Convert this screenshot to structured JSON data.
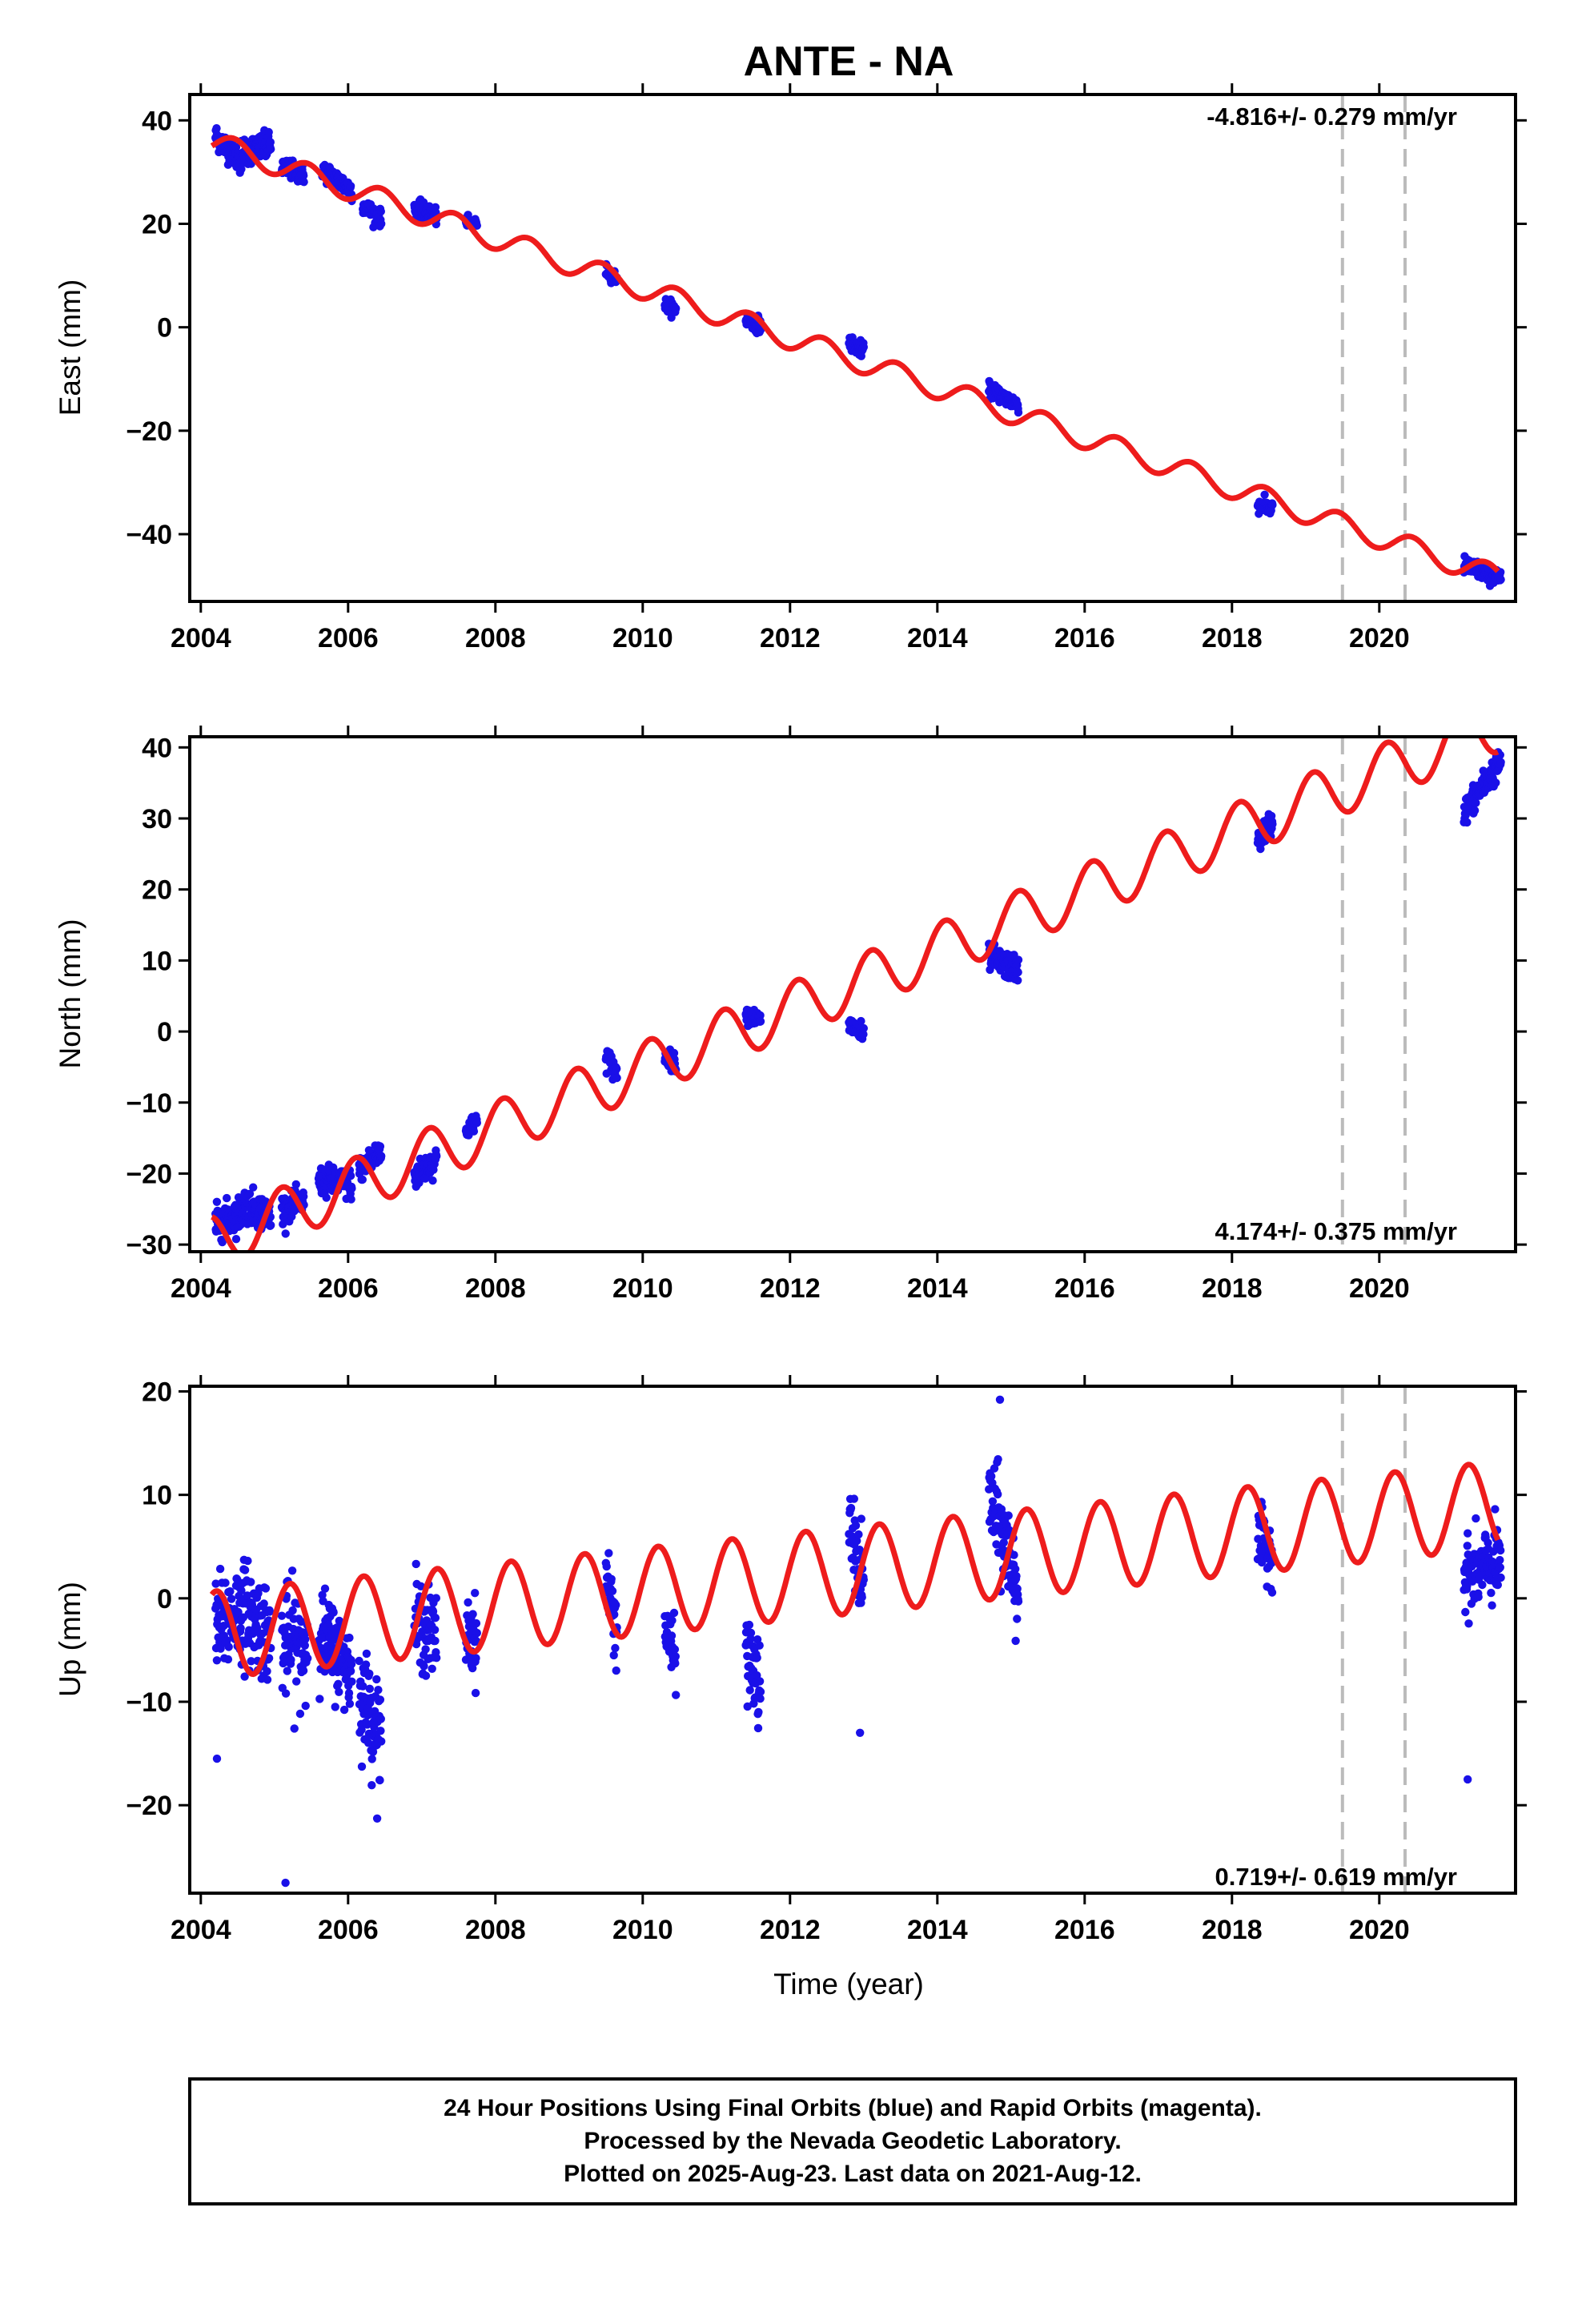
{
  "chart_data": [
    {
      "id": "east",
      "type": "scatter",
      "title": "ANTE - NA",
      "xlabel": "",
      "ylabel": "East (mm)",
      "xlim": [
        2003.85,
        2021.85
      ],
      "ylim": [
        -53,
        45
      ],
      "xticks": [
        2004,
        2006,
        2008,
        2010,
        2012,
        2014,
        2016,
        2018,
        2020
      ],
      "yticks": [
        40,
        20,
        0,
        -20,
        -40
      ],
      "grid": false,
      "rate_label": "-4.816+/- 0.279 mm/yr",
      "rate_position": "top-right",
      "vlines": [
        2019.5,
        2020.35
      ],
      "colors": {
        "data": "#1a10e8",
        "model": "#ee1c1c",
        "vline": "#bbbbbb"
      },
      "model": {
        "intercept": 35.5,
        "t0": 2004.2,
        "rate": -4.816,
        "annual_amplitude": 2.2,
        "phase": 0.0
      },
      "clusters": [
        {
          "t": [
            2004.2,
            2004.55
          ],
          "y": [
            37,
            32
          ],
          "spread": 2.0
        },
        {
          "t": [
            2004.55,
            2004.95
          ],
          "y": [
            34,
            35
          ],
          "spread": 2.2
        },
        {
          "t": [
            2005.1,
            2005.4
          ],
          "y": [
            31,
            29.5
          ],
          "spread": 1.5
        },
        {
          "t": [
            2005.65,
            2006.05
          ],
          "y": [
            30.5,
            26.5
          ],
          "spread": 1.6
        },
        {
          "t": [
            2006.2,
            2006.45
          ],
          "y": [
            23.5,
            21
          ],
          "spread": 1.3
        },
        {
          "t": [
            2006.9,
            2007.2
          ],
          "y": [
            23,
            21.5
          ],
          "spread": 1.3
        },
        {
          "t": [
            2007.6,
            2007.75
          ],
          "y": [
            20.5,
            20
          ],
          "spread": 0.8
        },
        {
          "t": [
            2009.5,
            2009.65
          ],
          "y": [
            11,
            9.5
          ],
          "spread": 1.0
        },
        {
          "t": [
            2010.3,
            2010.45
          ],
          "y": [
            4.5,
            3.5
          ],
          "spread": 1.0
        },
        {
          "t": [
            2011.4,
            2011.6
          ],
          "y": [
            1.5,
            0.5
          ],
          "spread": 1.2
        },
        {
          "t": [
            2012.8,
            2013.0
          ],
          "y": [
            -3,
            -4.5
          ],
          "spread": 1.2
        },
        {
          "t": [
            2014.7,
            2015.1
          ],
          "y": [
            -12,
            -15
          ],
          "spread": 1.2
        },
        {
          "t": [
            2018.35,
            2018.55
          ],
          "y": [
            -34.5,
            -35
          ],
          "spread": 1.2
        },
        {
          "t": [
            2021.15,
            2021.65
          ],
          "y": [
            -46,
            -48.5
          ],
          "spread": 1.4
        }
      ]
    },
    {
      "id": "north",
      "type": "scatter",
      "title": "",
      "xlabel": "",
      "ylabel": "North (mm)",
      "xlim": [
        2003.85,
        2021.85
      ],
      "ylim": [
        -31,
        41.5
      ],
      "xticks": [
        2004,
        2006,
        2008,
        2010,
        2012,
        2014,
        2016,
        2018,
        2020
      ],
      "yticks": [
        40,
        30,
        20,
        10,
        0,
        -10,
        -20,
        -30
      ],
      "grid": false,
      "rate_label": "4.174+/- 0.375 mm/yr",
      "rate_position": "bottom-right",
      "vlines": [
        2019.5,
        2020.35
      ],
      "colors": {
        "data": "#1a10e8",
        "model": "#ee1c1c",
        "vline": "#bbbbbb"
      },
      "model": {
        "intercept": -29.5,
        "t0": 2004.2,
        "rate": 4.174,
        "annual_amplitude": 3.8,
        "phase": 2.2
      },
      "clusters": [
        {
          "t": [
            2004.2,
            2004.55
          ],
          "y": [
            -27,
            -25.5
          ],
          "spread": 2.0
        },
        {
          "t": [
            2004.55,
            2004.95
          ],
          "y": [
            -24,
            -26
          ],
          "spread": 2.0
        },
        {
          "t": [
            2005.1,
            2005.4
          ],
          "y": [
            -25,
            -24
          ],
          "spread": 1.5
        },
        {
          "t": [
            2005.6,
            2006.05
          ],
          "y": [
            -21,
            -21.5
          ],
          "spread": 1.7
        },
        {
          "t": [
            2006.15,
            2006.45
          ],
          "y": [
            -19.5,
            -17
          ],
          "spread": 1.6
        },
        {
          "t": [
            2006.9,
            2007.2
          ],
          "y": [
            -20.5,
            -18
          ],
          "spread": 1.5
        },
        {
          "t": [
            2007.6,
            2007.75
          ],
          "y": [
            -14,
            -12.5
          ],
          "spread": 1.0
        },
        {
          "t": [
            2009.5,
            2009.65
          ],
          "y": [
            -3.5,
            -6
          ],
          "spread": 1.3
        },
        {
          "t": [
            2010.3,
            2010.45
          ],
          "y": [
            -3.5,
            -4.5
          ],
          "spread": 1.0
        },
        {
          "t": [
            2011.4,
            2011.6
          ],
          "y": [
            2.5,
            1.5
          ],
          "spread": 1.0
        },
        {
          "t": [
            2012.8,
            2013.0
          ],
          "y": [
            1,
            -0.5
          ],
          "spread": 1.2
        },
        {
          "t": [
            2014.7,
            2015.1
          ],
          "y": [
            10.5,
            8.5
          ],
          "spread": 1.5
        },
        {
          "t": [
            2018.35,
            2018.55
          ],
          "y": [
            27,
            29.5
          ],
          "spread": 1.5
        },
        {
          "t": [
            2021.15,
            2021.65
          ],
          "y": [
            31,
            38
          ],
          "spread": 1.6
        }
      ]
    },
    {
      "id": "up",
      "type": "scatter",
      "title": "",
      "xlabel": "Time (year)",
      "ylabel": "Up (mm)",
      "xlim": [
        2003.85,
        2021.85
      ],
      "ylim": [
        -28.5,
        20.5
      ],
      "xticks": [
        2004,
        2006,
        2008,
        2010,
        2012,
        2014,
        2016,
        2018,
        2020
      ],
      "yticks": [
        20,
        10,
        0,
        -10,
        -20
      ],
      "grid": false,
      "rate_label": "0.719+/- 0.619 mm/yr",
      "rate_position": "bottom-right",
      "vlines": [
        2019.5,
        2020.35
      ],
      "colors": {
        "data": "#1a10e8",
        "model": "#ee1c1c",
        "vline": "#bbbbbb"
      },
      "model": {
        "intercept": -3.5,
        "t0": 2004.2,
        "rate": 0.719,
        "annual_amplitude": 4.2,
        "phase": 1.5
      },
      "clusters": [
        {
          "t": [
            2004.2,
            2004.55
          ],
          "y": [
            -3,
            -1
          ],
          "spread": 4.0
        },
        {
          "t": [
            2004.55,
            2004.95
          ],
          "y": [
            -1,
            -3.5
          ],
          "spread": 4.0
        },
        {
          "t": [
            2005.1,
            2005.45
          ],
          "y": [
            -4,
            -5
          ],
          "spread": 4.5
        },
        {
          "t": [
            2005.6,
            2006.05
          ],
          "y": [
            -3,
            -7
          ],
          "spread": 3.5
        },
        {
          "t": [
            2006.15,
            2006.45
          ],
          "y": [
            -9,
            -13
          ],
          "spread": 4.0
        },
        {
          "t": [
            2006.9,
            2007.2
          ],
          "y": [
            -2,
            -4
          ],
          "spread": 3.5
        },
        {
          "t": [
            2007.6,
            2007.75
          ],
          "y": [
            -3,
            -4
          ],
          "spread": 3.0
        },
        {
          "t": [
            2009.5,
            2009.65
          ],
          "y": [
            2,
            -3
          ],
          "spread": 3.0
        },
        {
          "t": [
            2010.3,
            2010.45
          ],
          "y": [
            -3,
            -6
          ],
          "spread": 2.5
        },
        {
          "t": [
            2011.4,
            2011.6
          ],
          "y": [
            -5,
            -9
          ],
          "spread": 3.5
        },
        {
          "t": [
            2012.8,
            2013.0
          ],
          "y": [
            7,
            1
          ],
          "spread": 3.5
        },
        {
          "t": [
            2014.7,
            2015.1
          ],
          "y": [
            10,
            1
          ],
          "spread": 4.0
        },
        {
          "t": [
            2018.35,
            2018.55
          ],
          "y": [
            5.5,
            4.5
          ],
          "spread": 2.5
        },
        {
          "t": [
            2021.15,
            2021.65
          ],
          "y": [
            2,
            3.5
          ],
          "spread": 3.0
        }
      ],
      "outliers": [
        {
          "t": 2004.22,
          "y": -15.5
        },
        {
          "t": 2005.15,
          "y": -27.5
        },
        {
          "t": 2021.2,
          "y": -17.5
        },
        {
          "t": 2014.85,
          "y": 19.2
        },
        {
          "t": 2012.95,
          "y": -13
        }
      ]
    }
  ],
  "footer": {
    "line1": "24 Hour Positions Using Final Orbits (blue) and Rapid Orbits (magenta).",
    "line2": "Processed by the Nevada Geodetic Laboratory.",
    "line3": "Plotted on 2025-Aug-23. Last data on 2021-Aug-12."
  }
}
